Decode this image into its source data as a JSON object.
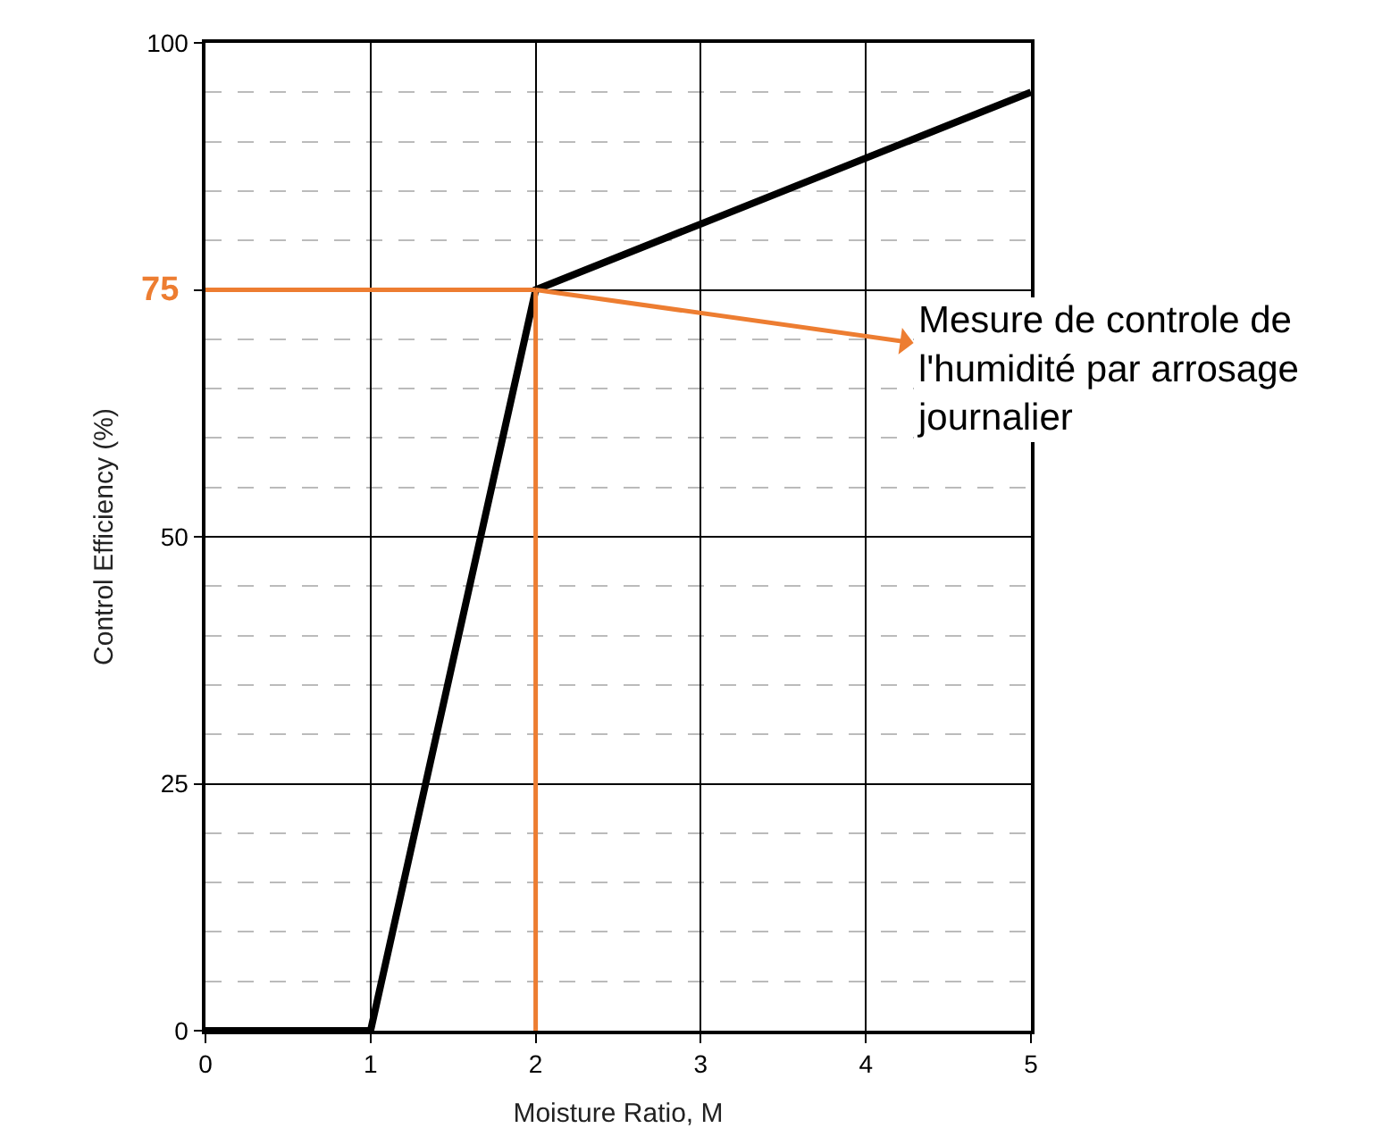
{
  "chart_data": {
    "type": "line",
    "xlabel": "Moisture Ratio, M",
    "ylabel": "Control Efficiency (%)",
    "x": [
      0,
      1,
      2,
      5
    ],
    "series": [
      {
        "color": "#000000",
        "values": [
          0,
          0,
          75,
          95
        ]
      }
    ],
    "xlim": [
      0,
      5
    ],
    "xticks": [
      0,
      1,
      2,
      3,
      4,
      5
    ],
    "ylim": [
      0,
      100
    ],
    "yticks": [
      0,
      25,
      50,
      {
        "value": 75,
        "label": null
      },
      100
    ],
    "grid": true,
    "marker": "none",
    "line_style": "solid",
    "ref_lines": [
      {
        "axis": "y",
        "value": 75,
        "label": "75",
        "color": "#ed7d31"
      },
      {
        "axis": "x",
        "value": 2,
        "label": null,
        "color": "#ed7d31"
      }
    ],
    "annotations": [
      {
        "text": "Mesure de controle de\nl'humidité par arrosage\njournalier",
        "x": 2,
        "y": 75
      }
    ]
  }
}
